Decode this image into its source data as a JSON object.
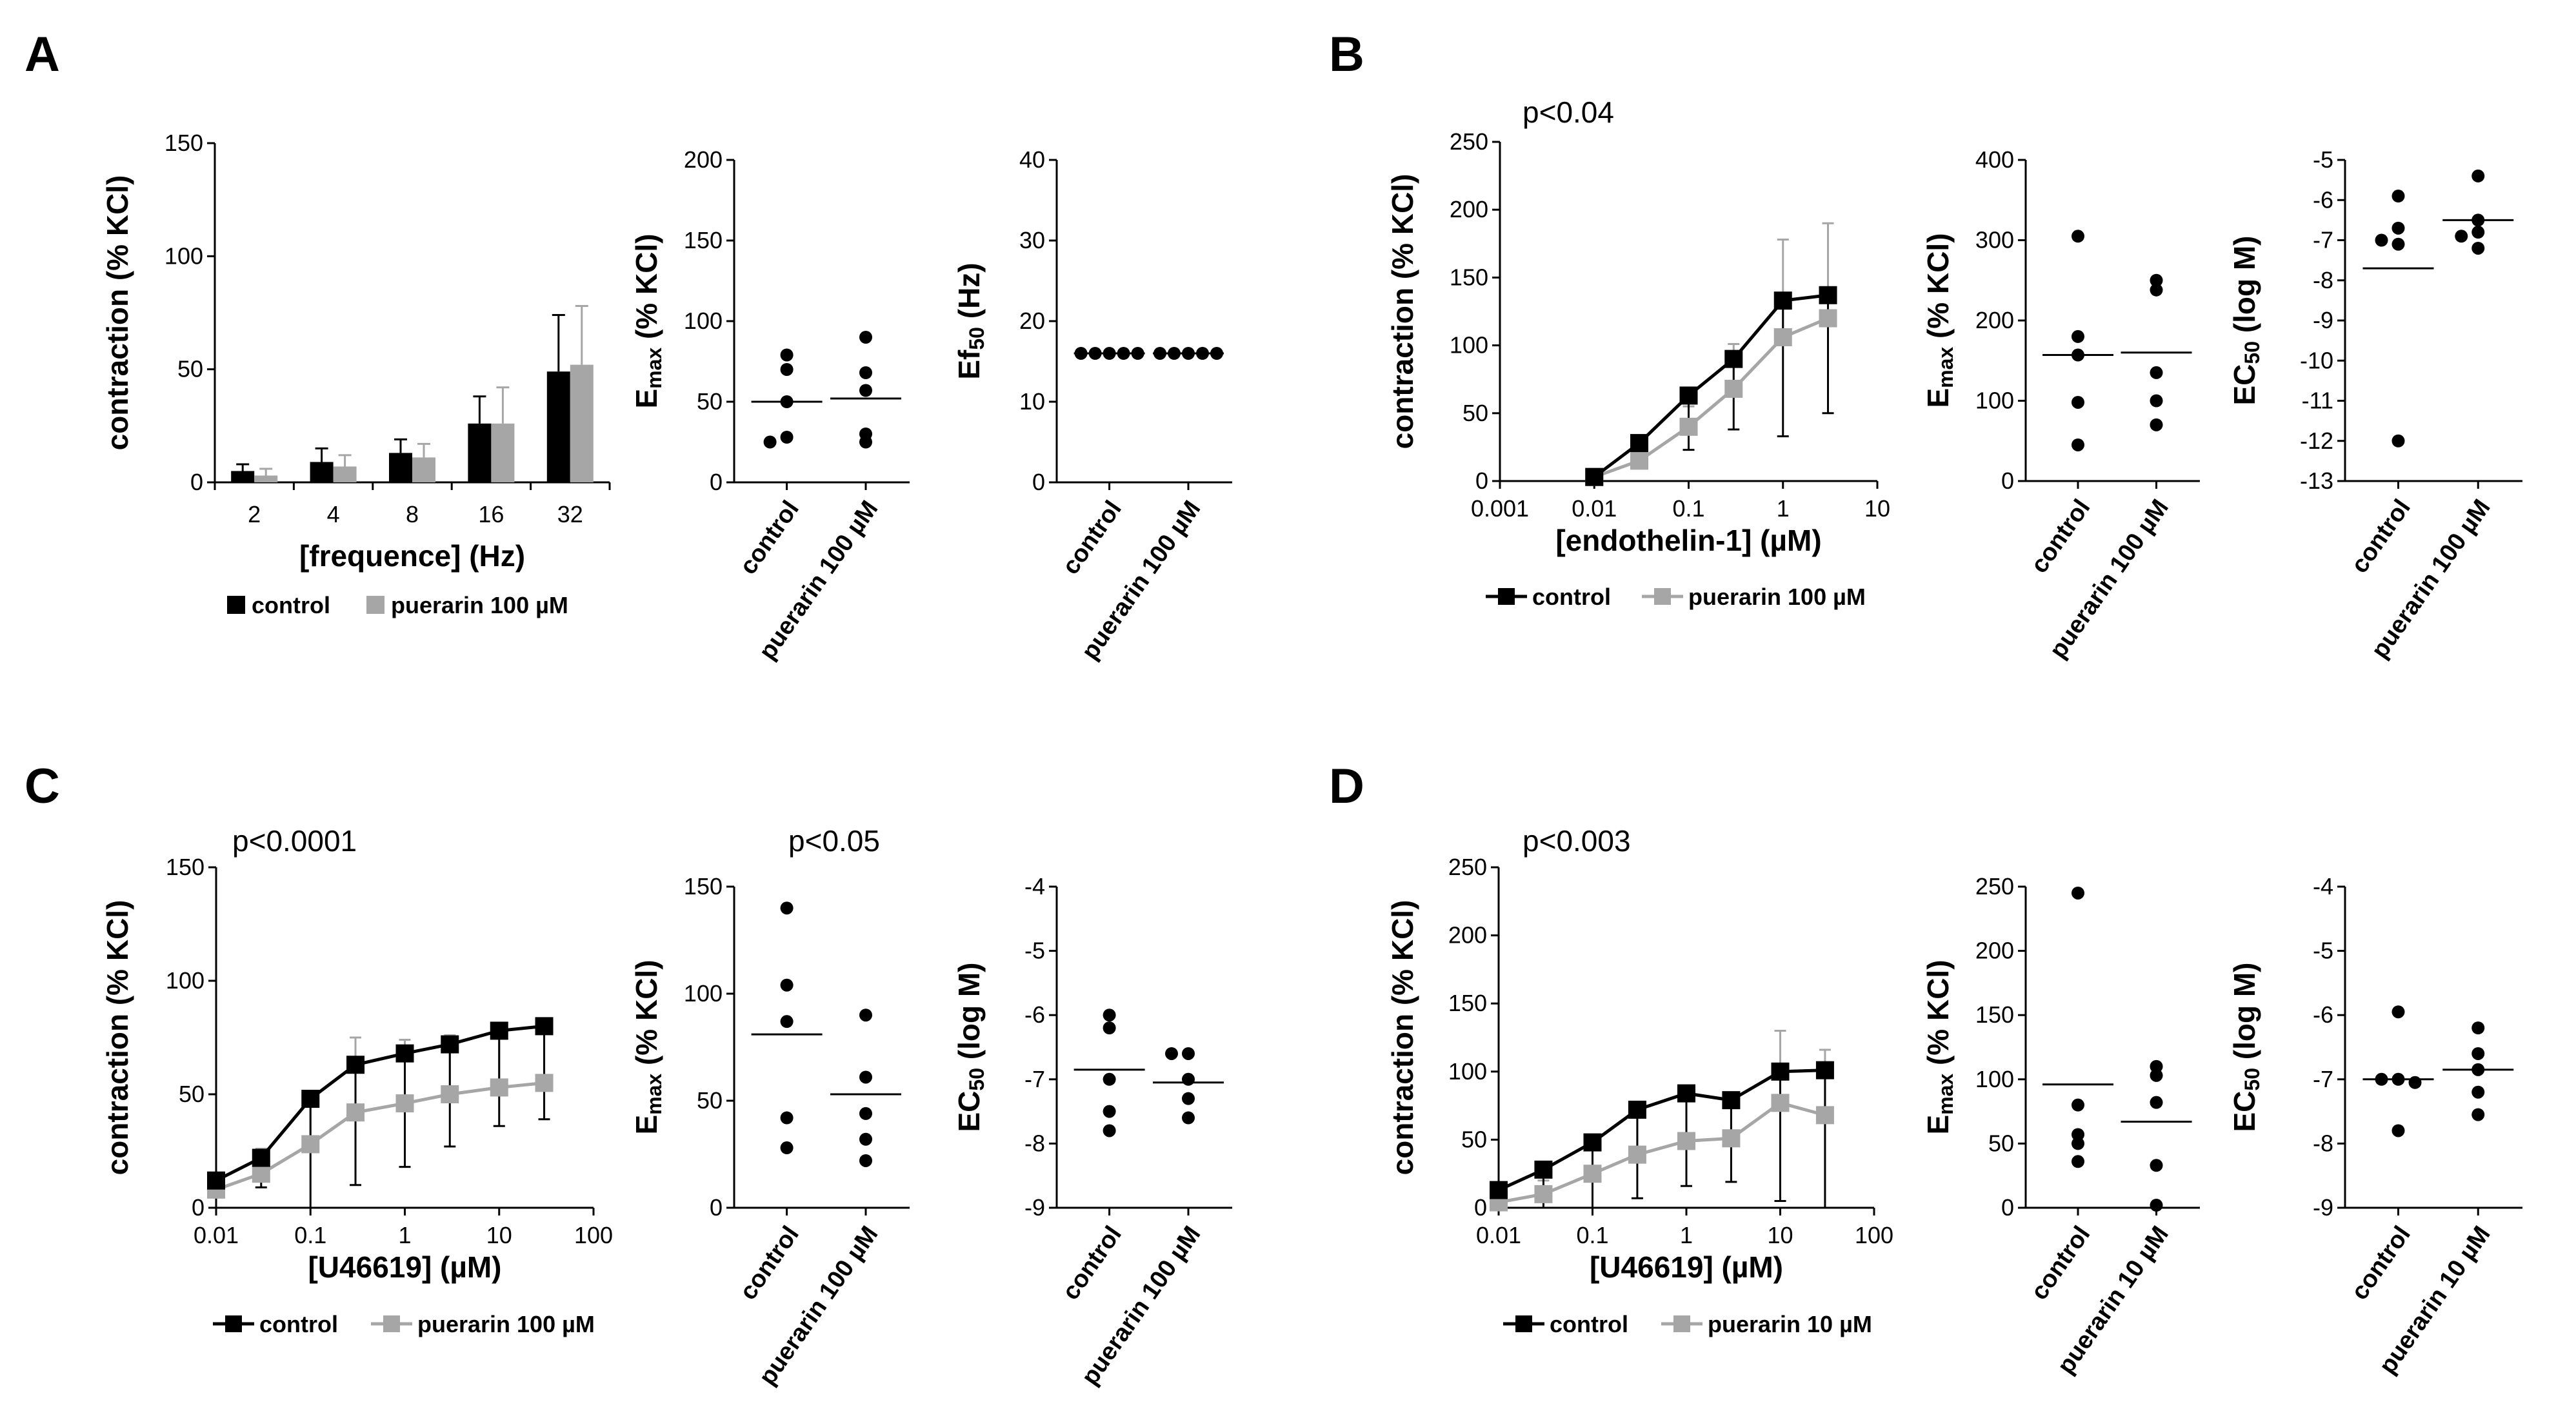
{
  "panels": {
    "A": "A",
    "B": "B",
    "C": "C",
    "D": "D"
  },
  "colors": {
    "control": "#000000",
    "puerarin": "#a6a6a6",
    "axis": "#000000"
  },
  "chart_data": [
    {
      "id": "A1",
      "type": "bar",
      "title": "",
      "xlabel": "[frequence] (Hz)",
      "ylabel": "contraction (% KCl)",
      "categories": [
        "2",
        "4",
        "8",
        "16",
        "32"
      ],
      "ylim": [
        0,
        150
      ],
      "yticks": [
        "0",
        "50",
        "100",
        "150"
      ],
      "series": [
        {
          "name": "control",
          "values": [
            5,
            9,
            13,
            26,
            49
          ],
          "err": [
            3,
            6,
            6,
            12,
            25
          ]
        },
        {
          "name": "puerarin 100 µM",
          "values": [
            3,
            7,
            11,
            26,
            52
          ],
          "err": [
            3,
            5,
            6,
            16,
            26
          ]
        }
      ]
    },
    {
      "id": "A2",
      "type": "scatter",
      "title": "",
      "xlabel": "",
      "ylabel": "E_max (% KCl)",
      "ylabel_main": "E",
      "ylabel_sub": "max",
      "ylabel_rest": " (% KCl)",
      "ylim": [
        0,
        200
      ],
      "yticks": [
        "0",
        "50",
        "100",
        "150",
        "200"
      ],
      "categories": [
        "control",
        "puerarin 100 µM"
      ],
      "points": [
        [
          79,
          70,
          50,
          28,
          25
        ],
        [
          90,
          68,
          57,
          30,
          25
        ]
      ],
      "means": [
        50,
        52
      ]
    },
    {
      "id": "A3",
      "type": "scatter",
      "title": "",
      "xlabel": "",
      "ylabel": "Ef_50 (Hz)",
      "ylabel_main": "Ef",
      "ylabel_sub": "50",
      "ylabel_rest": " (Hz)",
      "ylim": [
        0,
        40
      ],
      "yticks": [
        "0",
        "10",
        "20",
        "30",
        "40"
      ],
      "categories": [
        "control",
        "puerarin 100 µM"
      ],
      "points": [
        [
          16,
          16,
          16,
          16,
          16
        ],
        [
          16,
          16,
          16,
          16,
          16
        ]
      ],
      "means": [
        16,
        16
      ]
    },
    {
      "id": "B1",
      "type": "line",
      "title": "p<0.04",
      "xlabel": "[endothelin-1] (µM)",
      "ylabel": "contraction (% KCl)",
      "xlog": [
        -3,
        1
      ],
      "xticks": [
        "0.001",
        "0.01",
        "0.1",
        "1",
        "10"
      ],
      "ylim": [
        0,
        250
      ],
      "yticks": [
        "0",
        "50",
        "100",
        "150",
        "200",
        "250"
      ],
      "x": [
        0.01,
        0.03,
        0.1,
        0.3,
        1,
        3
      ],
      "series": [
        {
          "name": "control",
          "values": [
            3,
            28,
            63,
            90,
            133,
            137
          ],
          "err": [
            2,
            12,
            40,
            52,
            100,
            87
          ]
        },
        {
          "name": "puerarin 100 µM",
          "values": [
            3,
            15,
            40,
            68,
            106,
            120
          ],
          "err": [
            2,
            10,
            15,
            33,
            72,
            70
          ]
        }
      ]
    },
    {
      "id": "B2",
      "type": "scatter",
      "title": "",
      "xlabel": "",
      "ylabel": "E_max (% KCl)",
      "ylabel_main": "E",
      "ylabel_sub": "max",
      "ylabel_rest": " (% KCl)",
      "ylim": [
        0,
        400
      ],
      "yticks": [
        "0",
        "100",
        "200",
        "300",
        "400"
      ],
      "categories": [
        "control",
        "puerarin 100 µM"
      ],
      "points": [
        [
          305,
          180,
          157,
          98,
          45
        ],
        [
          250,
          238,
          135,
          100,
          70
        ]
      ],
      "means": [
        157,
        160
      ]
    },
    {
      "id": "B3",
      "type": "scatter",
      "title": "",
      "xlabel": "",
      "ylabel": "EC_50 (log M)",
      "ylabel_main": "EC",
      "ylabel_sub": "50",
      "ylabel_rest": " (log M)",
      "ylim": [
        -13,
        -5
      ],
      "yticks": [
        "-13",
        "-12",
        "-11",
        "-10",
        "-9",
        "-8",
        "-7",
        "-6",
        "-5"
      ],
      "categories": [
        "control",
        "puerarin 100 µM"
      ],
      "points": [
        [
          -5.9,
          -6.7,
          -7.1,
          -7.0,
          -12.0
        ],
        [
          -5.4,
          -6.5,
          -6.8,
          -6.9,
          -7.2
        ]
      ],
      "means": [
        -7.7,
        -6.5
      ]
    },
    {
      "id": "C1",
      "type": "line",
      "title": "p<0.0001",
      "xlabel": "[U46619] (µM)",
      "ylabel": "contraction (% KCl)",
      "xlog": [
        -2,
        2
      ],
      "xticks": [
        "0.01",
        "0.1",
        "1",
        "10",
        "100"
      ],
      "ylim": [
        0,
        150
      ],
      "yticks": [
        "0",
        "50",
        "100",
        "150"
      ],
      "x": [
        0.01,
        0.03,
        0.1,
        0.3,
        1,
        3,
        10,
        30
      ],
      "series": [
        {
          "name": "control",
          "values": [
            12,
            22,
            48,
            63,
            68,
            72,
            78,
            80
          ],
          "err": [
            5,
            13,
            53,
            53,
            50,
            45,
            42,
            41
          ]
        },
        {
          "name": "puerarin 100 µM",
          "values": [
            8,
            15,
            28,
            42,
            46,
            50,
            53,
            55
          ],
          "err": [
            5,
            11,
            22,
            33,
            28,
            26,
            27,
            25
          ]
        }
      ]
    },
    {
      "id": "C2",
      "type": "scatter",
      "title": "p<0.05",
      "xlabel": "",
      "ylabel": "E_max (% KCl)",
      "ylabel_main": "E",
      "ylabel_sub": "max",
      "ylabel_rest": " (% KCl)",
      "ylim": [
        0,
        150
      ],
      "yticks": [
        "0",
        "50",
        "100",
        "150"
      ],
      "categories": [
        "control",
        "puerarin 100 µM"
      ],
      "points": [
        [
          140,
          104,
          87,
          42,
          28
        ],
        [
          90,
          61,
          44,
          32,
          22
        ]
      ],
      "means": [
        81,
        53
      ]
    },
    {
      "id": "C3",
      "type": "scatter",
      "title": "",
      "xlabel": "",
      "ylabel": "EC_50 (log M)",
      "ylabel_main": "EC",
      "ylabel_sub": "50",
      "ylabel_rest": " (log M)",
      "ylim": [
        -9,
        -4
      ],
      "yticks": [
        "-9",
        "-8",
        "-7",
        "-6",
        "-5",
        "-4"
      ],
      "categories": [
        "control",
        "puerarin 100 µM"
      ],
      "points": [
        [
          -6.0,
          -6.2,
          -7.0,
          -7.5,
          -7.8
        ],
        [
          -6.6,
          -6.6,
          -7.0,
          -7.3,
          -7.6
        ]
      ],
      "means": [
        -6.85,
        -7.05
      ]
    },
    {
      "id": "D1",
      "type": "line",
      "title": "p<0.003",
      "xlabel": "[U46619] (µM)",
      "ylabel": "contraction (% KCl)",
      "xlog": [
        -2,
        2
      ],
      "xticks": [
        "0.01",
        "0.1",
        "1",
        "10",
        "100"
      ],
      "ylim": [
        0,
        250
      ],
      "yticks": [
        "0",
        "50",
        "100",
        "150",
        "200",
        "250"
      ],
      "x": [
        0.01,
        0.03,
        0.1,
        0.3,
        1,
        3,
        10,
        30
      ],
      "series": [
        {
          "name": "control",
          "values": [
            13,
            28,
            48,
            72,
            84,
            79,
            100,
            101
          ],
          "err": [
            8,
            28,
            53,
            65,
            68,
            60,
            95,
            104
          ]
        },
        {
          "name": "puerarin 10 µM",
          "values": [
            4,
            10,
            25,
            39,
            49,
            51,
            77,
            68
          ],
          "err": [
            3,
            10,
            20,
            28,
            35,
            33,
            53,
            48
          ]
        }
      ]
    },
    {
      "id": "D2",
      "type": "scatter",
      "title": "",
      "xlabel": "",
      "ylabel": "E_max (% KCl)",
      "ylabel_main": "E",
      "ylabel_sub": "max",
      "ylabel_rest": " (% KCl)",
      "ylim": [
        0,
        250
      ],
      "yticks": [
        "0",
        "50",
        "100",
        "150",
        "200",
        "250"
      ],
      "categories": [
        "control",
        "puerarin 10 µM"
      ],
      "points": [
        [
          245,
          80,
          57,
          50,
          36
        ],
        [
          110,
          103,
          82,
          33,
          2
        ]
      ],
      "means": [
        96,
        67
      ]
    },
    {
      "id": "D3",
      "type": "scatter",
      "title": "",
      "xlabel": "",
      "ylabel": "EC_50 (log M)",
      "ylabel_main": "EC",
      "ylabel_sub": "50",
      "ylabel_rest": " (log M)",
      "ylim": [
        -9,
        -4
      ],
      "yticks": [
        "-9",
        "-8",
        "-7",
        "-6",
        "-5",
        "-4"
      ],
      "categories": [
        "control",
        "puerarin 10 µM"
      ],
      "points": [
        [
          -5.95,
          -7.0,
          -7.0,
          -7.05,
          -7.8
        ],
        [
          -6.2,
          -6.6,
          -6.85,
          -7.2,
          -7.55
        ]
      ],
      "means": [
        -7.0,
        -6.85
      ]
    }
  ]
}
